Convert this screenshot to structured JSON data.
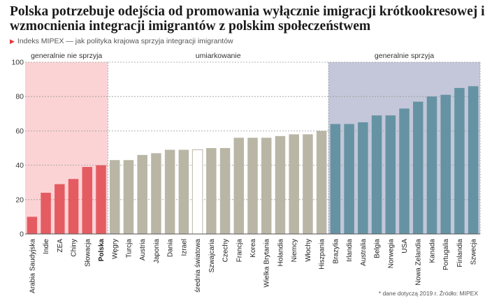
{
  "header": {
    "title": "Polska potrzebuje odejścia od promowania wyłącznie imigracji krótkookresowej i wzmocnienia integracji imigrantów z polskim społeczeństwem",
    "subtitle": "Indeks MIPEX — jak polityka krajowa sprzyja integracji imigrantów",
    "subtitle_marker": "▶"
  },
  "footnote": "* dane dotyczą 2019 r. Źródło: MIPEX",
  "colors": {
    "red_band": "#fbd3d5",
    "red_bar": "#e45c62",
    "gray_bar": "#b9b6a6",
    "blue_band": "#c3c7d9",
    "blue_bar": "#6593a3",
    "average_bar_fill": "#ffffff",
    "average_bar_stroke": "#b9b6a6"
  },
  "chart_data": {
    "type": "bar",
    "ylim": [
      0,
      100
    ],
    "yticks": [
      0,
      20,
      40,
      60,
      80,
      100
    ],
    "grid": true,
    "categories": [
      "Arabia Saudyjska",
      "Indie",
      "ZEA",
      "Chiny",
      "Słowacja",
      "Polska",
      "Węgry",
      "Turcja",
      "Austria",
      "Japonia",
      "Dania",
      "Izrael",
      "średnia światowa",
      "Szwajcaria",
      "Czechy",
      "Francja",
      "Korea",
      "Wielka Brytania",
      "Holandia",
      "Niemcy",
      "Włochy",
      "Hiszpania",
      "Brazylia",
      "Irlandia",
      "Australia",
      "Belgia",
      "Norwegia",
      "USA",
      "Nowa Zelandia",
      "Kanada",
      "Portugalia",
      "Finlandia",
      "Szwecja"
    ],
    "values": [
      10,
      24,
      29,
      32,
      39,
      40,
      43,
      43,
      46,
      47,
      49,
      49,
      49,
      50,
      50,
      56,
      56,
      56,
      57,
      58,
      58,
      60,
      64,
      64,
      65,
      69,
      69,
      73,
      77,
      80,
      81,
      85,
      86
    ],
    "groups": [
      {
        "label": "generalnie nie sprzyja",
        "from": 0,
        "to": 5,
        "color": "red"
      },
      {
        "label": "umiarkowanie",
        "from": 6,
        "to": 21,
        "color": "gray"
      },
      {
        "label": "generalnie sprzyja",
        "from": 22,
        "to": 32,
        "color": "blue"
      }
    ],
    "highlight_category": "Polska",
    "average_category": "średnia światowa"
  }
}
